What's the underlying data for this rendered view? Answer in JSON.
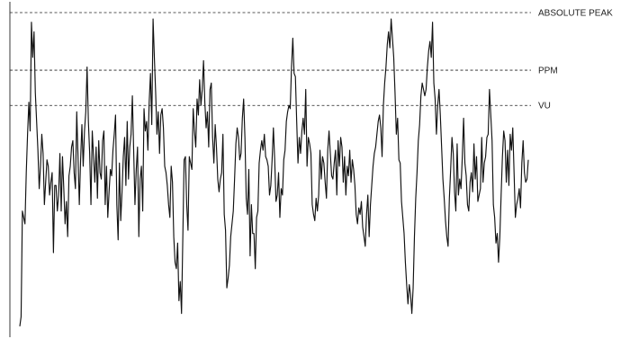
{
  "chart_data": {
    "type": "line",
    "title": "",
    "xlabel": "",
    "ylabel": "",
    "ylim": [
      0,
      1
    ],
    "grid": false,
    "reference_lines": [
      {
        "label": "ABSOLUTE PEAK",
        "y": 1.0
      },
      {
        "label": "PPM",
        "y": 0.82
      },
      {
        "label": "VU",
        "y": 0.71
      }
    ],
    "series": [
      {
        "values": [
          0.02,
          0.05,
          0.38,
          0.36,
          0.34,
          0.5,
          0.62,
          0.72,
          0.63,
          0.97,
          0.86,
          0.94,
          0.75,
          0.66,
          0.57,
          0.45,
          0.52,
          0.62,
          0.56,
          0.4,
          0.47,
          0.54,
          0.52,
          0.43,
          0.47,
          0.5,
          0.25,
          0.46,
          0.46,
          0.38,
          0.43,
          0.56,
          0.38,
          0.55,
          0.45,
          0.34,
          0.41,
          0.3,
          0.49,
          0.52,
          0.58,
          0.6,
          0.5,
          0.45,
          0.69,
          0.55,
          0.4,
          0.54,
          0.65,
          0.52,
          0.63,
          0.69,
          0.83,
          0.66,
          0.56,
          0.4,
          0.63,
          0.55,
          0.47,
          0.58,
          0.42,
          0.6,
          0.5,
          0.48,
          0.6,
          0.63,
          0.4,
          0.52,
          0.36,
          0.44,
          0.51,
          0.49,
          0.57,
          0.62,
          0.68,
          0.4,
          0.29,
          0.53,
          0.35,
          0.44,
          0.55,
          0.61,
          0.46,
          0.66,
          0.48,
          0.58,
          0.62,
          0.74,
          0.57,
          0.4,
          0.51,
          0.58,
          0.3,
          0.48,
          0.52,
          0.38,
          0.7,
          0.63,
          0.66,
          0.57,
          0.72,
          0.81,
          0.65,
          0.98,
          0.86,
          0.75,
          0.62,
          0.69,
          0.56,
          0.68,
          0.7,
          0.64,
          0.52,
          0.5,
          0.46,
          0.4,
          0.36,
          0.52,
          0.47,
          0.3,
          0.22,
          0.2,
          0.28,
          0.1,
          0.16,
          0.06,
          0.3,
          0.54,
          0.55,
          0.4,
          0.32,
          0.55,
          0.53,
          0.51,
          0.7,
          0.63,
          0.58,
          0.73,
          0.68,
          0.79,
          0.71,
          0.76,
          0.85,
          0.72,
          0.64,
          0.69,
          0.58,
          0.76,
          0.78,
          0.61,
          0.53,
          0.65,
          0.58,
          0.48,
          0.44,
          0.48,
          0.5,
          0.62,
          0.37,
          0.32,
          0.14,
          0.17,
          0.21,
          0.3,
          0.34,
          0.38,
          0.48,
          0.59,
          0.64,
          0.61,
          0.54,
          0.56,
          0.67,
          0.73,
          0.61,
          0.42,
          0.37,
          0.51,
          0.24,
          0.4,
          0.31,
          0.31,
          0.2,
          0.36,
          0.38,
          0.53,
          0.57,
          0.6,
          0.57,
          0.62,
          0.55,
          0.54,
          0.52,
          0.43,
          0.46,
          0.54,
          0.64,
          0.54,
          0.41,
          0.43,
          0.5,
          0.36,
          0.45,
          0.43,
          0.54,
          0.57,
          0.66,
          0.69,
          0.71,
          0.7,
          0.83,
          0.92,
          0.81,
          0.8,
          0.66,
          0.53,
          0.61,
          0.56,
          0.63,
          0.67,
          0.62,
          0.76,
          0.52,
          0.61,
          0.59,
          0.56,
          0.4,
          0.37,
          0.35,
          0.42,
          0.38,
          0.43,
          0.57,
          0.48,
          0.55,
          0.53,
          0.47,
          0.42,
          0.57,
          0.63,
          0.56,
          0.49,
          0.48,
          0.53,
          0.57,
          0.43,
          0.6,
          0.52,
          0.61,
          0.58,
          0.47,
          0.55,
          0.43,
          0.52,
          0.49,
          0.57,
          0.47,
          0.54,
          0.51,
          0.46,
          0.37,
          0.34,
          0.39,
          0.37,
          0.41,
          0.33,
          0.3,
          0.27,
          0.37,
          0.43,
          0.3,
          0.4,
          0.46,
          0.52,
          0.56,
          0.58,
          0.62,
          0.66,
          0.68,
          0.64,
          0.55,
          0.71,
          0.78,
          0.83,
          0.9,
          0.94,
          0.89,
          0.98,
          0.92,
          0.86,
          0.75,
          0.62,
          0.67,
          0.54,
          0.53,
          0.41,
          0.36,
          0.31,
          0.22,
          0.15,
          0.09,
          0.15,
          0.12,
          0.06,
          0.14,
          0.3,
          0.42,
          0.5,
          0.6,
          0.65,
          0.74,
          0.78,
          0.76,
          0.74,
          0.76,
          0.83,
          0.88,
          0.91,
          0.86,
          0.97,
          0.78,
          0.73,
          0.62,
          0.71,
          0.76,
          0.68,
          0.58,
          0.48,
          0.42,
          0.35,
          0.3,
          0.27,
          0.42,
          0.51,
          0.61,
          0.56,
          0.44,
          0.38,
          0.59,
          0.43,
          0.48,
          0.45,
          0.55,
          0.67,
          0.53,
          0.49,
          0.4,
          0.38,
          0.47,
          0.5,
          0.44,
          0.59,
          0.48,
          0.55,
          0.41,
          0.43,
          0.45,
          0.61,
          0.47,
          0.53,
          0.55,
          0.61,
          0.62,
          0.76,
          0.68,
          0.6,
          0.4,
          0.36,
          0.28,
          0.31,
          0.22,
          0.3,
          0.43,
          0.55,
          0.63,
          0.6,
          0.47,
          0.57,
          0.46,
          0.62,
          0.57,
          0.64,
          0.5,
          0.36,
          0.4,
          0.42,
          0.45,
          0.39,
          0.53,
          0.6,
          0.5,
          0.47,
          0.48,
          0.54
        ]
      }
    ]
  }
}
